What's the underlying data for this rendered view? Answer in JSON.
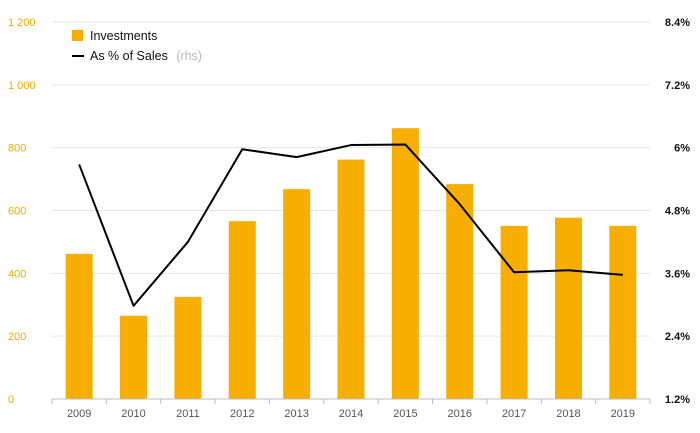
{
  "colors": {
    "bar": "#f7ae00",
    "line": "#000000",
    "left_axis_text": "#f0ab00",
    "grid": "#e6e6e6"
  },
  "legend": {
    "investments_label": "Investments",
    "ratio_label": "As % of Sales",
    "ratio_note": "(rhs)"
  },
  "chart_data": {
    "type": "bar",
    "title": "",
    "categories": [
      "2009",
      "2010",
      "2011",
      "2012",
      "2013",
      "2014",
      "2015",
      "2016",
      "2017",
      "2018",
      "2019"
    ],
    "series": [
      {
        "name": "Investments",
        "type": "bar",
        "axis": "left",
        "values": [
          462,
          265,
          325,
          566,
          668,
          762,
          862,
          684,
          551,
          577,
          551
        ]
      },
      {
        "name": "As % of Sales",
        "type": "line",
        "axis": "right",
        "unit": "%",
        "values": [
          5.68,
          2.98,
          4.2,
          5.97,
          5.82,
          6.05,
          6.06,
          4.92,
          3.62,
          3.66,
          3.57
        ]
      }
    ],
    "y_left": {
      "min": 0,
      "max": 1200,
      "ticks": [
        0,
        200,
        400,
        600,
        800,
        1000,
        1200
      ],
      "tick_labels": [
        "0",
        "200",
        "400",
        "600",
        "800",
        "1 000",
        "1 200"
      ]
    },
    "y_right": {
      "min": 1.2,
      "max": 8.4,
      "ticks": [
        1.2,
        2.4,
        3.6,
        4.8,
        6,
        7.2,
        8.4
      ],
      "tick_labels": [
        "1.2%",
        "2.4%",
        "3.6%",
        "4.8%",
        "6%",
        "7.2%",
        "8.4%"
      ]
    },
    "legend_position": "top-left",
    "grid": true
  }
}
